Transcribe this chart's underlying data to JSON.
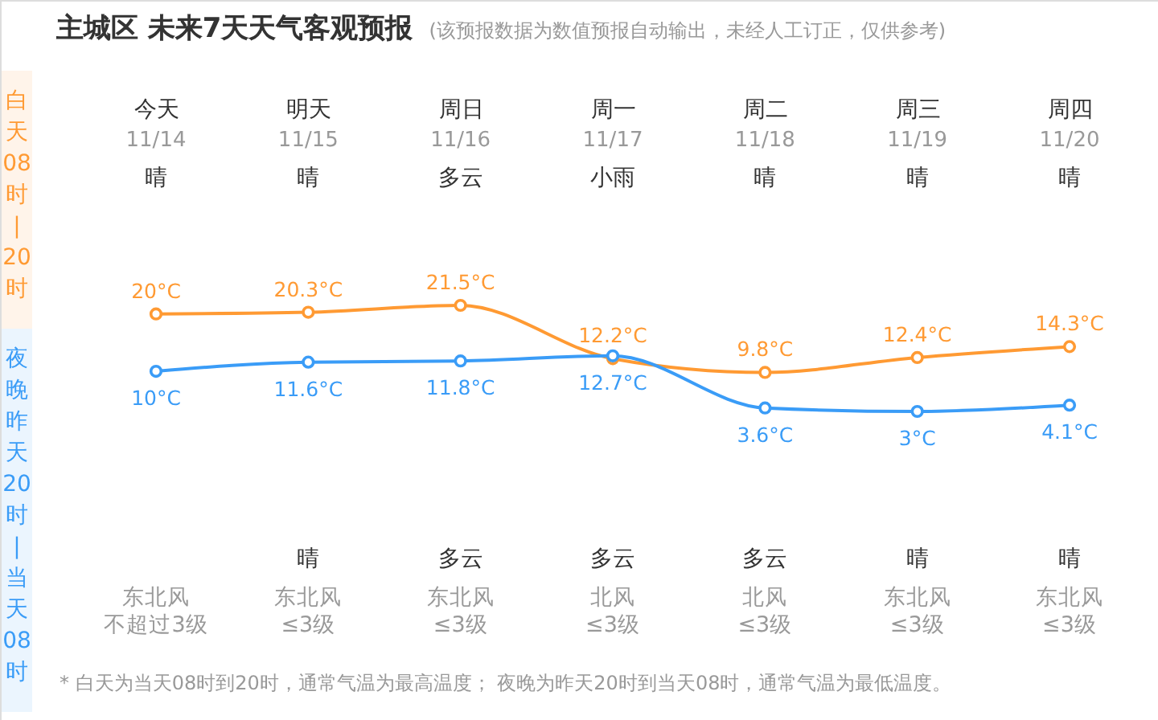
{
  "chart_data": {
    "type": "line",
    "title": "主城区 未来7天天气客观预报",
    "subtitle": "(该预报数据为数值预报自动输出，未经人工订正，仅供参考)",
    "categories": [
      "今天",
      "明天",
      "周日",
      "周一",
      "周二",
      "周三",
      "周四"
    ],
    "series": [
      {
        "name": "白天08时|20时",
        "color": "#ff9a33",
        "values": [
          20,
          20.3,
          21.5,
          12.2,
          9.8,
          12.4,
          14.3
        ],
        "value_labels": [
          "20°C",
          "20.3°C",
          "21.5°C",
          "12.2°C",
          "9.8°C",
          "12.4°C",
          "14.3°C"
        ]
      },
      {
        "name": "夜晚昨天20时|当天08时",
        "color": "#3a9cf7",
        "values": [
          10,
          11.6,
          11.8,
          12.7,
          3.6,
          3,
          4.1
        ],
        "value_labels": [
          "10°C",
          "11.6°C",
          "11.8°C",
          "12.7°C",
          "3.6°C",
          "3°C",
          "4.1°C"
        ]
      }
    ],
    "marker": "circle",
    "line_style": "solid",
    "legend": "left",
    "tick_labels": "x",
    "annotations": [
      "11/14",
      "11/15",
      "11/16",
      "11/17",
      "11/18",
      "11/19",
      "11/20",
      "晴",
      "晴",
      "多云",
      "小雨",
      "晴",
      "晴",
      "晴",
      "晴",
      "多云",
      "多云",
      "多云",
      "晴",
      "晴",
      "东北风",
      "东北风",
      "东北风",
      "北风",
      "北风",
      "东北风",
      "东北风",
      "不超过3级",
      "≤3级",
      "≤3级",
      "≤3级",
      "≤3级",
      "≤3级",
      "≤3级",
      "* 白天为当天08时到20时，通常气温为最高温度；  夜晚为昨天20时到当天08时，通常气温为最低温度。"
    ]
  }
}
